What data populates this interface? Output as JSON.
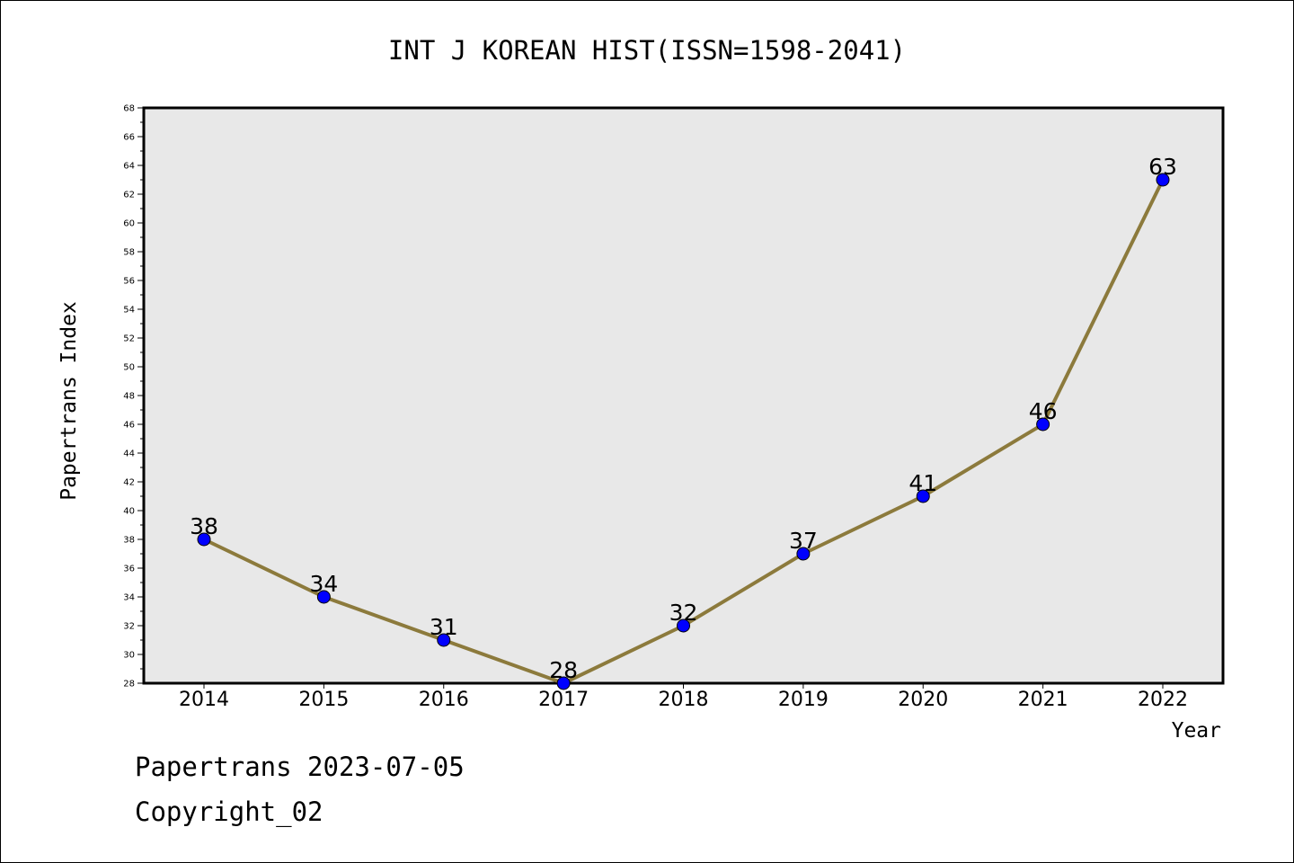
{
  "chart_data": {
    "type": "line",
    "title": "INT J KOREAN HIST(ISSN=1598-2041)",
    "xlabel": "Year",
    "ylabel": "Papertrans Index",
    "categories": [
      "2014",
      "2015",
      "2016",
      "2017",
      "2018",
      "2019",
      "2020",
      "2021",
      "2022"
    ],
    "values": [
      38,
      34,
      31,
      28,
      32,
      37,
      41,
      46,
      63
    ],
    "ylim": [
      28,
      68
    ],
    "y_major_step": 2,
    "grid": false,
    "data_labels": true,
    "colors": {
      "line": "#8c7a3c",
      "marker_fill": "#0000ff",
      "marker_stroke": "#000000",
      "plot_background": "#e8e8e8"
    }
  },
  "footer": {
    "line1": "Papertrans 2023-07-05",
    "line2": "Copyright_02"
  }
}
